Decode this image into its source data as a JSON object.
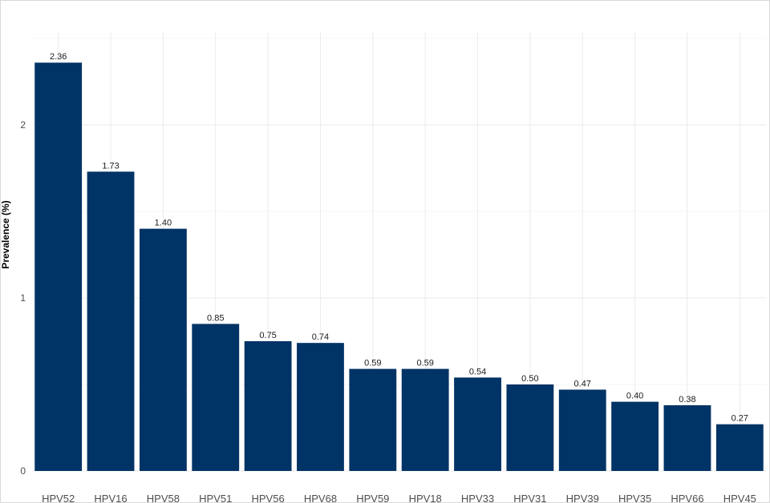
{
  "chart_data": {
    "type": "bar",
    "title": "",
    "xlabel": "",
    "ylabel": "Prevalence (%)",
    "categories": [
      "HPV52",
      "HPV16",
      "HPV58",
      "HPV51",
      "HPV56",
      "HPV68",
      "HPV59",
      "HPV18",
      "HPV33",
      "HPV31",
      "HPV39",
      "HPV35",
      "HPV66",
      "HPV45"
    ],
    "values": [
      2.36,
      1.73,
      1.4,
      0.85,
      0.75,
      0.74,
      0.59,
      0.59,
      0.54,
      0.5,
      0.47,
      0.4,
      0.38,
      0.27
    ],
    "data_labels": [
      "2.36",
      "1.73",
      "1.40",
      "0.85",
      "0.75",
      "0.74",
      "0.59",
      "0.59",
      "0.54",
      "0.50",
      "0.47",
      "0.40",
      "0.38",
      "0.27"
    ],
    "yticks": [
      0,
      1,
      2
    ],
    "ylim": [
      0,
      2.5
    ],
    "grid": true,
    "legend": "none",
    "bar_color": "#003366"
  }
}
